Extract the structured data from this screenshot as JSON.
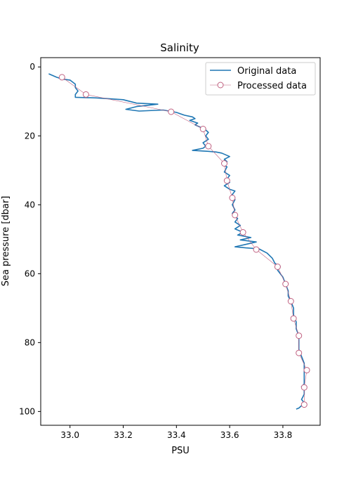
{
  "chart_data": {
    "type": "line",
    "title": "Salinity",
    "xlabel": "PSU",
    "ylabel": "Sea pressure [dbar]",
    "xlim": [
      32.89,
      33.94
    ],
    "ylim": [
      104,
      -2.7
    ],
    "y_inverted": true,
    "xticks": [
      33.0,
      33.2,
      33.4,
      33.6,
      33.8
    ],
    "xtick_labels": [
      "33.0",
      "33.2",
      "33.4",
      "33.6",
      "33.8"
    ],
    "yticks": [
      0,
      20,
      40,
      60,
      80,
      100
    ],
    "ytick_labels": [
      "0",
      "20",
      "40",
      "60",
      "80",
      "100"
    ],
    "grid": false,
    "legend": {
      "placement": "top-right",
      "entries": [
        "Original data",
        "Processed data"
      ]
    },
    "series": [
      {
        "name": "Original data",
        "color": "#1f77b4",
        "marker": "none",
        "points": [
          [
            32.92,
            2.0
          ],
          [
            32.95,
            3.0
          ],
          [
            32.97,
            3.5
          ],
          [
            33.0,
            3.8
          ],
          [
            33.02,
            5.0
          ],
          [
            33.02,
            6.0
          ],
          [
            33.03,
            7.0
          ],
          [
            33.02,
            8.0
          ],
          [
            33.02,
            8.8
          ],
          [
            33.1,
            9.0
          ],
          [
            33.2,
            9.5
          ],
          [
            33.25,
            10.5
          ],
          [
            33.33,
            10.8
          ],
          [
            33.25,
            11.5
          ],
          [
            33.21,
            12.3
          ],
          [
            33.26,
            12.8
          ],
          [
            33.35,
            12.5
          ],
          [
            33.4,
            13.2
          ],
          [
            33.43,
            14.0
          ],
          [
            33.46,
            14.5
          ],
          [
            33.47,
            15.0
          ],
          [
            33.45,
            15.5
          ],
          [
            33.48,
            16.3
          ],
          [
            33.47,
            16.8
          ],
          [
            33.49,
            17.5
          ],
          [
            33.51,
            18.3
          ],
          [
            33.52,
            19.0
          ],
          [
            33.51,
            20.0
          ],
          [
            33.52,
            21.0
          ],
          [
            33.5,
            22.0
          ],
          [
            33.51,
            23.0
          ],
          [
            33.5,
            23.6
          ],
          [
            33.46,
            24.2
          ],
          [
            33.52,
            24.5
          ],
          [
            33.55,
            24.7
          ],
          [
            33.57,
            25.0
          ],
          [
            33.6,
            26.0
          ],
          [
            33.58,
            26.8
          ],
          [
            33.59,
            27.5
          ],
          [
            33.57,
            28.0
          ],
          [
            33.59,
            29.0
          ],
          [
            33.58,
            30.5
          ],
          [
            33.6,
            31.5
          ],
          [
            33.59,
            32.5
          ],
          [
            33.6,
            33.5
          ],
          [
            33.58,
            34.5
          ],
          [
            33.6,
            35.5
          ],
          [
            33.62,
            36.0
          ],
          [
            33.61,
            37.0
          ],
          [
            33.62,
            38.5
          ],
          [
            33.61,
            40.0
          ],
          [
            33.62,
            41.5
          ],
          [
            33.61,
            42.5
          ],
          [
            33.63,
            44.0
          ],
          [
            33.62,
            45.0
          ],
          [
            33.64,
            46.0
          ],
          [
            33.62,
            47.0
          ],
          [
            33.65,
            48.0
          ],
          [
            33.63,
            48.8
          ],
          [
            33.68,
            49.5
          ],
          [
            33.64,
            50.2
          ],
          [
            33.7,
            50.8
          ],
          [
            33.66,
            51.5
          ],
          [
            33.62,
            52.2
          ],
          [
            33.66,
            52.5
          ],
          [
            33.71,
            52.8
          ],
          [
            33.74,
            54.0
          ],
          [
            33.76,
            55.5
          ],
          [
            33.77,
            57.0
          ],
          [
            33.79,
            58.0
          ],
          [
            33.78,
            59.0
          ],
          [
            33.8,
            61.0
          ],
          [
            33.81,
            63.0
          ],
          [
            33.82,
            65.0
          ],
          [
            33.82,
            66.5
          ],
          [
            33.83,
            68.0
          ],
          [
            33.84,
            70.0
          ],
          [
            33.84,
            72.0
          ],
          [
            33.85,
            74.0
          ],
          [
            33.85,
            76.0
          ],
          [
            33.86,
            78.0
          ],
          [
            33.86,
            80.0
          ],
          [
            33.86,
            82.0
          ],
          [
            33.87,
            84.0
          ],
          [
            33.88,
            86.0
          ],
          [
            33.88,
            88.0
          ],
          [
            33.88,
            90.0
          ],
          [
            33.88,
            92.0
          ],
          [
            33.87,
            92.8
          ],
          [
            33.88,
            93.5
          ],
          [
            33.88,
            95.0
          ],
          [
            33.87,
            96.5
          ],
          [
            33.88,
            97.5
          ],
          [
            33.87,
            98.3
          ],
          [
            33.86,
            99.0
          ],
          [
            33.85,
            99.3
          ]
        ]
      },
      {
        "name": "Processed data",
        "color": "#c06080",
        "marker": "circle",
        "points": [
          [
            32.97,
            3.0
          ],
          [
            33.06,
            8.0
          ],
          [
            33.38,
            13.0
          ],
          [
            33.5,
            18.0
          ],
          [
            33.52,
            23.0
          ],
          [
            33.58,
            28.0
          ],
          [
            33.59,
            33.0
          ],
          [
            33.61,
            38.0
          ],
          [
            33.62,
            43.0
          ],
          [
            33.65,
            48.0
          ],
          [
            33.7,
            53.0
          ],
          [
            33.78,
            58.0
          ],
          [
            33.81,
            63.0
          ],
          [
            33.83,
            68.0
          ],
          [
            33.84,
            73.0
          ],
          [
            33.86,
            78.0
          ],
          [
            33.86,
            83.0
          ],
          [
            33.89,
            88.0
          ],
          [
            33.88,
            93.0
          ],
          [
            33.88,
            98.0
          ]
        ]
      }
    ]
  }
}
